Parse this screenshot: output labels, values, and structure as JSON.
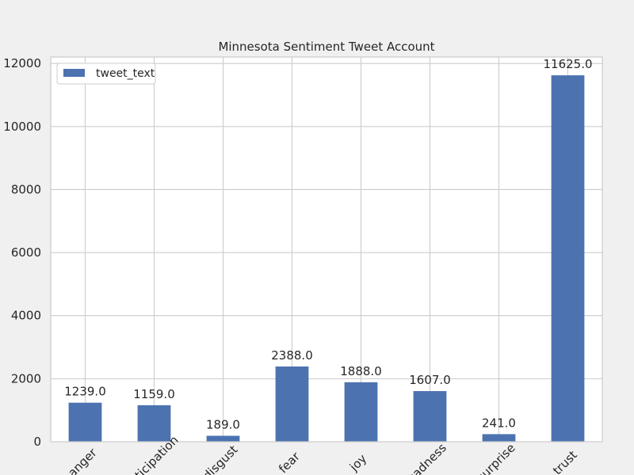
{
  "chart_data": {
    "type": "bar",
    "title": "Minnesota Sentiment Tweet Account",
    "xlabel": "",
    "ylabel": "",
    "categories": [
      "anger",
      "anticipation",
      "disgust",
      "fear",
      "joy",
      "sadness",
      "surprise",
      "trust"
    ],
    "series": [
      {
        "name": "tweet_text",
        "values": [
          1239.0,
          1159.0,
          189.0,
          2388.0,
          1888.0,
          1607.0,
          241.0,
          11625.0
        ],
        "data_labels": [
          "1239.0",
          "1159.0",
          "189.0",
          "2388.0",
          "1888.0",
          "1607.0",
          "241.0",
          "11625.0"
        ],
        "color": "#4c72b0"
      }
    ],
    "yticks": [
      0,
      2000,
      4000,
      6000,
      8000,
      10000,
      12000
    ],
    "ylim": [
      0,
      12206
    ],
    "grid": true,
    "legend_position": "top-left",
    "colors": {
      "figure_background": "#f0f0f0",
      "plot_background": "#ffffff",
      "grid": "#cccccc",
      "spine": "#cccccc",
      "text": "#262626"
    }
  }
}
